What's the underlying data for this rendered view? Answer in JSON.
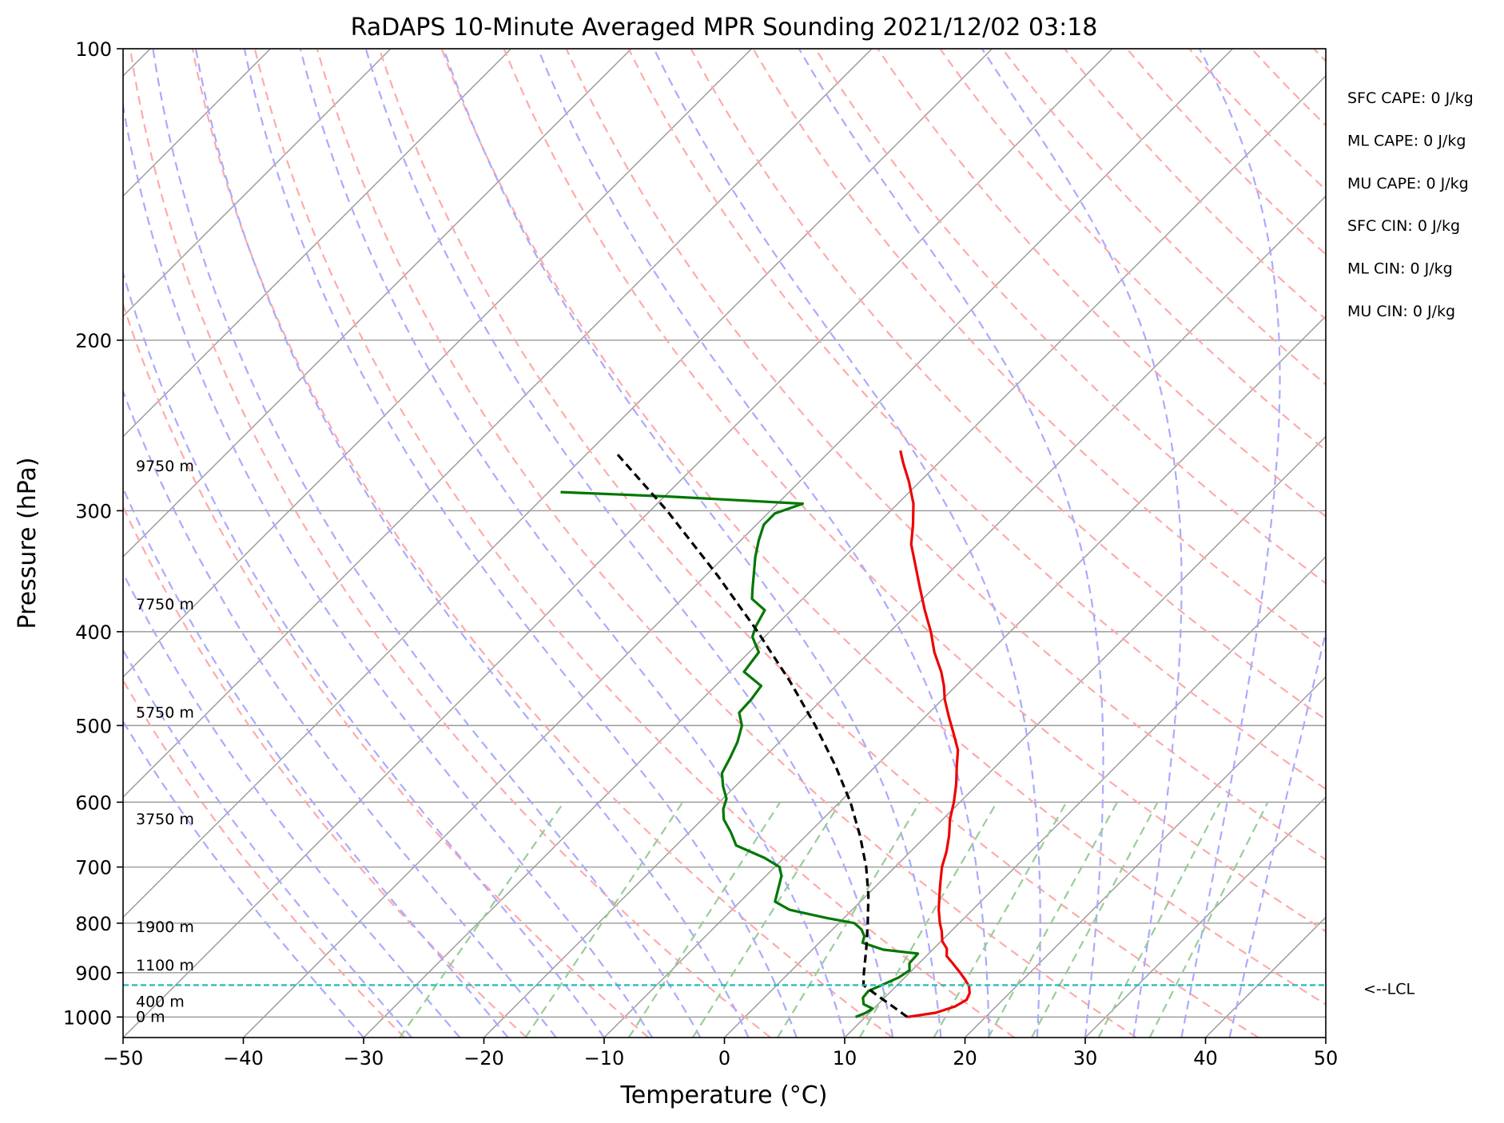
{
  "chart_data": {
    "type": "line",
    "title": "RaDAPS 10-Minute Averaged MPR Sounding 2021/12/02 03:18",
    "xlabel": "Temperature (°C)",
    "ylabel": "Pressure (hPa)",
    "xlim": [
      -50,
      50
    ],
    "ylim": [
      1050,
      100
    ],
    "y_scale": "log",
    "x_ticks": [
      -50,
      -40,
      -30,
      -20,
      -10,
      0,
      10,
      20,
      30,
      40,
      50
    ],
    "x_tick_labels": [
      "−50",
      "−40",
      "−30",
      "−20",
      "−10",
      "0",
      "10",
      "20",
      "30",
      "40",
      "50"
    ],
    "y_ticks": [
      1000,
      900,
      800,
      700,
      600,
      500,
      400,
      300,
      200,
      100
    ],
    "y_tick_labels": [
      "1000",
      "900",
      "800",
      "700",
      "600",
      "500",
      "400",
      "300",
      "200",
      "100"
    ],
    "grid": true,
    "skew": "skew-T log-P",
    "colors": {
      "temperature": "#ee0000",
      "dewpoint": "#007700",
      "parcel": "#000000",
      "lcl": "#22bbbb",
      "dry_adiabats": "#ffaaaa",
      "moist_adiabats": "#aaaaff",
      "mixing_ratio": "#99cc99",
      "isotherms": "#999999"
    },
    "series": [
      {
        "key": "temperature",
        "values": [
          [
            1000,
            13.5
          ],
          [
            990,
            15.5
          ],
          [
            975,
            16.6
          ],
          [
            960,
            17.0
          ],
          [
            945,
            16.7
          ],
          [
            930,
            16.1
          ],
          [
            915,
            15.2
          ],
          [
            900,
            14.2
          ],
          [
            880,
            12.8
          ],
          [
            865,
            11.7
          ],
          [
            850,
            11.1
          ],
          [
            835,
            10.1
          ],
          [
            815,
            9.2
          ],
          [
            800,
            8.4
          ],
          [
            775,
            7.2
          ],
          [
            750,
            6.1
          ],
          [
            725,
            5.0
          ],
          [
            700,
            3.9
          ],
          [
            675,
            3.0
          ],
          [
            650,
            1.9
          ],
          [
            625,
            0.6
          ],
          [
            600,
            -0.5
          ],
          [
            575,
            -1.8
          ],
          [
            550,
            -3.3
          ],
          [
            530,
            -4.5
          ],
          [
            510,
            -6.2
          ],
          [
            490,
            -8.0
          ],
          [
            470,
            -9.8
          ],
          [
            455,
            -11.0
          ],
          [
            440,
            -12.4
          ],
          [
            420,
            -14.6
          ],
          [
            400,
            -16.6
          ],
          [
            380,
            -18.9
          ],
          [
            360,
            -21.2
          ],
          [
            340,
            -23.6
          ],
          [
            325,
            -25.5
          ],
          [
            310,
            -27.0
          ],
          [
            295,
            -28.7
          ],
          [
            280,
            -30.9
          ],
          [
            268,
            -32.9
          ],
          [
            260,
            -34.2
          ]
        ]
      },
      {
        "key": "dewpoint",
        "values": [
          [
            1000,
            9.2
          ],
          [
            990,
            9.7
          ],
          [
            980,
            9.9
          ],
          [
            970,
            8.8
          ],
          [
            955,
            8.2
          ],
          [
            940,
            8.1
          ],
          [
            925,
            8.8
          ],
          [
            910,
            9.5
          ],
          [
            895,
            9.8
          ],
          [
            880,
            9.2
          ],
          [
            860,
            9.1
          ],
          [
            852,
            5.9
          ],
          [
            838,
            3.6
          ],
          [
            825,
            3.2
          ],
          [
            812,
            2.4
          ],
          [
            800,
            1.3
          ],
          [
            790,
            -1.5
          ],
          [
            775,
            -5.2
          ],
          [
            760,
            -7.1
          ],
          [
            740,
            -7.8
          ],
          [
            715,
            -8.7
          ],
          [
            700,
            -9.6
          ],
          [
            685,
            -11.6
          ],
          [
            665,
            -15.0
          ],
          [
            645,
            -16.5
          ],
          [
            625,
            -18.2
          ],
          [
            610,
            -19.1
          ],
          [
            595,
            -19.7
          ],
          [
            578,
            -21.0
          ],
          [
            560,
            -22.2
          ],
          [
            540,
            -22.8
          ],
          [
            520,
            -23.5
          ],
          [
            500,
            -24.5
          ],
          [
            485,
            -25.8
          ],
          [
            470,
            -25.9
          ],
          [
            455,
            -26.2
          ],
          [
            440,
            -28.8
          ],
          [
            420,
            -29.2
          ],
          [
            405,
            -31.0
          ],
          [
            395,
            -31.6
          ],
          [
            380,
            -32.2
          ],
          [
            370,
            -34.2
          ],
          [
            360,
            -35.1
          ],
          [
            350,
            -36.0
          ],
          [
            335,
            -37.4
          ],
          [
            322,
            -38.5
          ],
          [
            310,
            -39.4
          ],
          [
            302,
            -39.4
          ],
          [
            295,
            -37.9
          ],
          [
            290,
            -49.7
          ],
          [
            287,
            -59.0
          ]
        ]
      },
      {
        "key": "parcel",
        "values": [
          [
            1000,
            13.5
          ],
          [
            975,
            11.4
          ],
          [
            950,
            9.2
          ],
          [
            927,
            7.2
          ],
          [
            900,
            6.2
          ],
          [
            850,
            4.4
          ],
          [
            800,
            2.4
          ],
          [
            750,
            0.2
          ],
          [
            700,
            -2.4
          ],
          [
            650,
            -5.5
          ],
          [
            600,
            -9.1
          ],
          [
            550,
            -13.4
          ],
          [
            500,
            -18.4
          ],
          [
            450,
            -24.2
          ],
          [
            400,
            -31.0
          ],
          [
            350,
            -39.0
          ],
          [
            300,
            -48.6
          ],
          [
            262,
            -57.5
          ]
        ]
      }
    ],
    "height_labels": [
      {
        "p": 1000,
        "label": "0 m"
      },
      {
        "p": 965,
        "label": "400 m"
      },
      {
        "p": 885,
        "label": "1100 m"
      },
      {
        "p": 808,
        "label": "1900 m"
      },
      {
        "p": 625,
        "label": "3750 m"
      },
      {
        "p": 485,
        "label": "5750 m"
      },
      {
        "p": 375,
        "label": "7750 m"
      },
      {
        "p": 270,
        "label": "9750 m"
      }
    ],
    "lcl": {
      "p": 927,
      "label": "<--LCL"
    },
    "indices": [
      "SFC CAPE: 0 J/kg",
      "ML CAPE: 0 J/kg",
      "MU CAPE: 0 J/kg",
      "SFC CIN: 0 J/kg",
      "ML CIN: 0 J/kg",
      "MU CIN: 0 J/kg"
    ]
  }
}
